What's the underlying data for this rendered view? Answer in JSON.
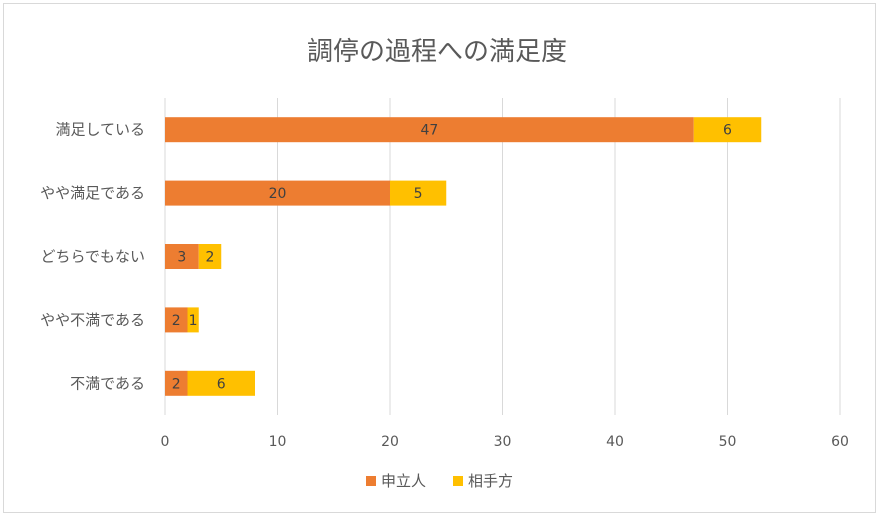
{
  "chart_data": {
    "type": "bar",
    "orientation": "horizontal",
    "stacked": true,
    "title": "調停の過程への満足度",
    "categories": [
      "満足している",
      "やや満足である",
      "どちらでもない",
      "やや不満である",
      "不満である"
    ],
    "series": [
      {
        "name": "申立人",
        "values": [
          47,
          20,
          3,
          2,
          2
        ],
        "color": "#ED7D31"
      },
      {
        "name": "相手方",
        "values": [
          6,
          5,
          2,
          1,
          6
        ],
        "color": "#FFC000"
      }
    ],
    "xlim": [
      0,
      60
    ],
    "xticks": [
      0,
      10,
      20,
      30,
      40,
      50,
      60
    ],
    "grid": true,
    "legend": "bottom",
    "xlabel": "",
    "ylabel": ""
  }
}
